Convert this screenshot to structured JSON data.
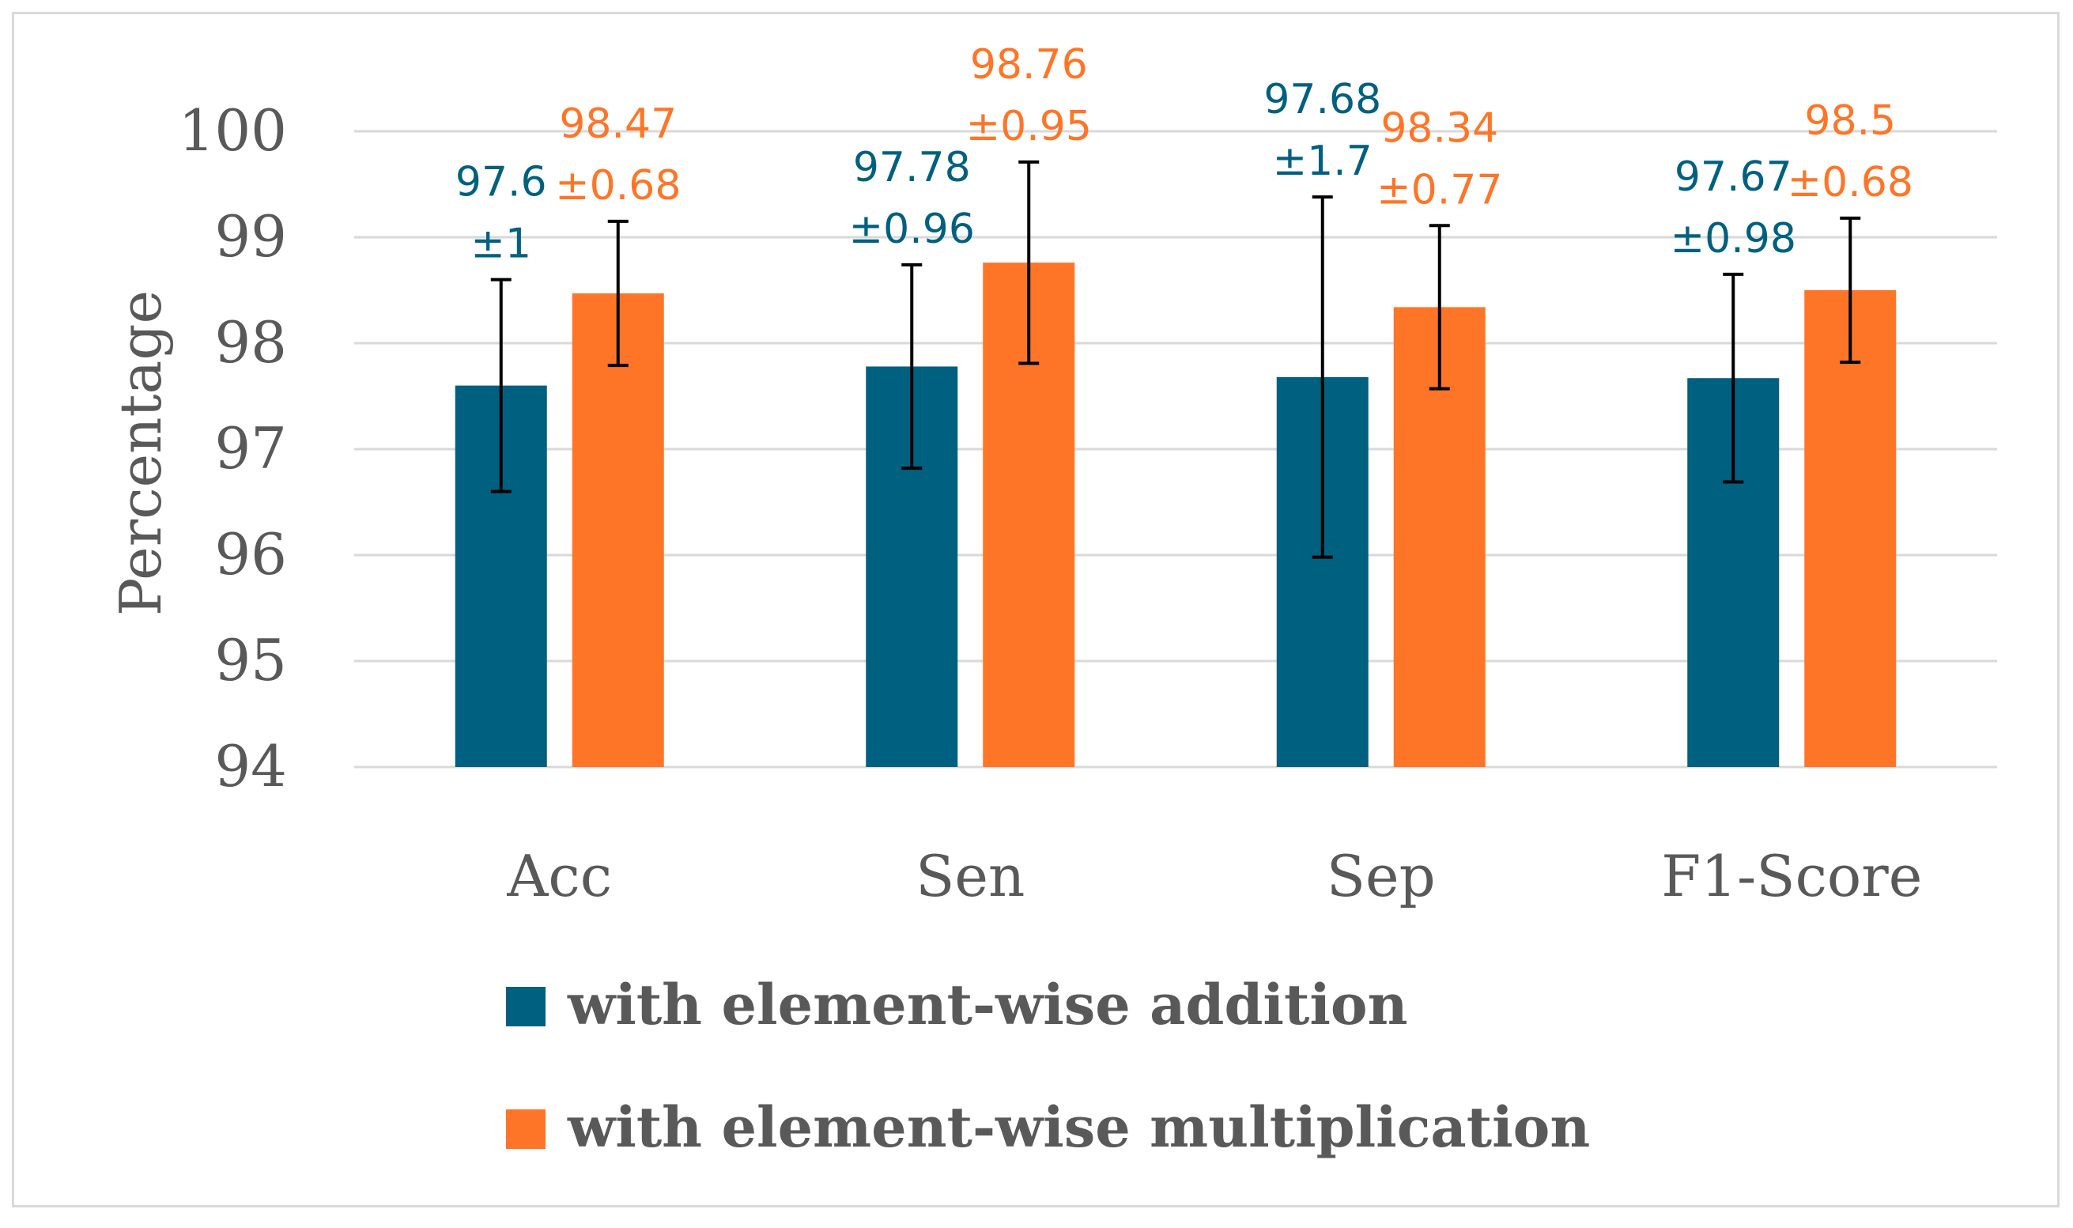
{
  "chart_data": {
    "type": "bar",
    "title": "",
    "xlabel": "",
    "ylabel": "Percentage",
    "ylim": [
      94,
      100
    ],
    "yticks": [
      94,
      95,
      96,
      97,
      98,
      99,
      100
    ],
    "grid": true,
    "legend_position": "bottom",
    "categories": [
      "Acc",
      "Sen",
      "Sep",
      "F1-Score"
    ],
    "series": [
      {
        "name": "with element-wise addition",
        "color": "#00607f",
        "values": [
          97.6,
          97.78,
          97.68,
          97.67
        ],
        "errors": [
          1,
          0.96,
          1.7,
          0.98
        ],
        "value_labels": [
          "97.6",
          "97.78",
          "97.68",
          "97.67"
        ],
        "error_labels": [
          "±1",
          "±0.96",
          "±1.7",
          "±0.98"
        ]
      },
      {
        "name": "with element-wise multiplication",
        "color": "#ff7527",
        "values": [
          98.47,
          98.76,
          98.34,
          98.5
        ],
        "errors": [
          0.68,
          0.95,
          0.77,
          0.68
        ],
        "value_labels": [
          "98.47",
          "98.76",
          "98.34",
          "98.5"
        ],
        "error_labels": [
          "±0.68",
          "±0.95",
          "±0.77",
          "±0.68"
        ]
      }
    ]
  }
}
